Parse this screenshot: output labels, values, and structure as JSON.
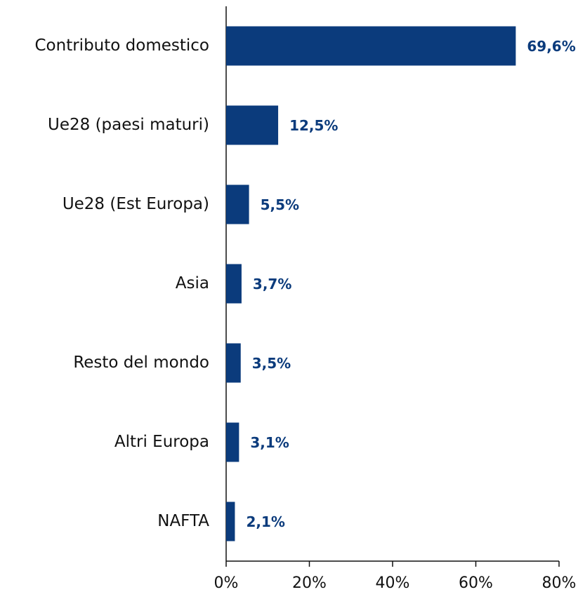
{
  "chart_data": {
    "type": "bar",
    "orientation": "horizontal",
    "categories": [
      "Contributo domestico",
      "Ue28 (paesi maturi)",
      "Ue28 (Est Europa)",
      "Asia",
      "Resto del mondo",
      "Altri Europa",
      "NAFTA"
    ],
    "values": [
      69.6,
      12.5,
      5.5,
      3.7,
      3.5,
      3.1,
      2.1
    ],
    "value_labels": [
      "69,6%",
      "12,5%",
      "5,5%",
      "3,7%",
      "3,5%",
      "3,1%",
      "2,1%"
    ],
    "color": "#0b3b7c",
    "xlim": [
      0,
      80
    ],
    "xticks": [
      {
        "value": 0,
        "label": "0%"
      },
      {
        "value": 20,
        "label": "20%"
      },
      {
        "value": 40,
        "label": "40%"
      },
      {
        "value": 60,
        "label": "60%"
      },
      {
        "value": 80,
        "label": "80%"
      }
    ],
    "grid": false
  }
}
